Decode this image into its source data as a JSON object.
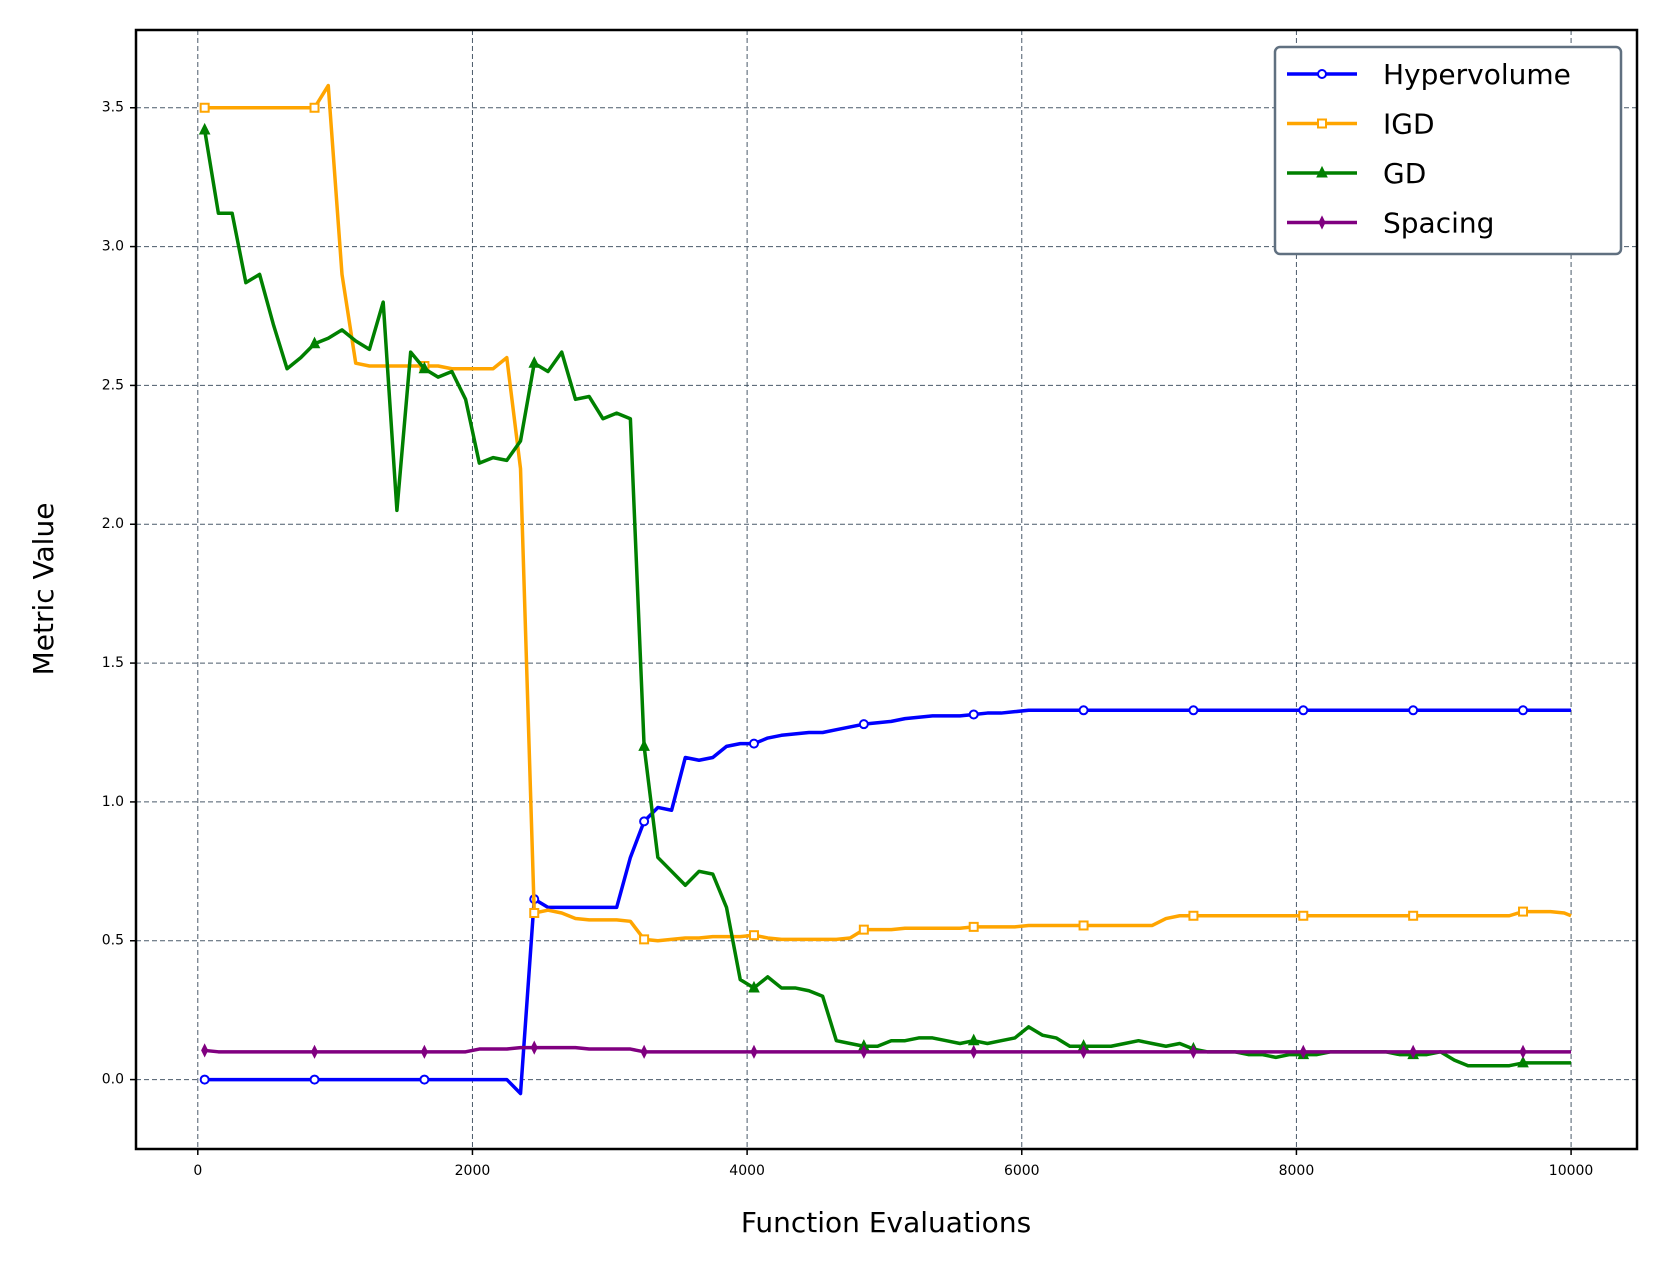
{
  "chart_data": {
    "type": "line",
    "xlabel": "Function Evaluations",
    "ylabel": "Metric Value",
    "xlim": [
      -450,
      10480
    ],
    "ylim": [
      -0.25,
      3.78
    ],
    "xticks": [
      0,
      2000,
      4000,
      6000,
      8000,
      10000
    ],
    "yticks": [
      {
        "value": 0,
        "label": "0.0"
      },
      0.5,
      {
        "value": 1,
        "label": "1.0"
      },
      1.5,
      {
        "value": 2,
        "label": "2.0"
      },
      2.5,
      {
        "value": 3,
        "label": "3.0"
      },
      3.5
    ],
    "grid": true,
    "legend": "upper right",
    "x": [
      50,
      150,
      250,
      350,
      450,
      550,
      650,
      750,
      850,
      950,
      1050,
      1150,
      1250,
      1350,
      1450,
      1550,
      1650,
      1750,
      1850,
      1950,
      2050,
      2150,
      2250,
      2350,
      2450,
      2550,
      2650,
      2750,
      2850,
      2950,
      3050,
      3150,
      3250,
      3350,
      3450,
      3550,
      3650,
      3750,
      3850,
      3950,
      4050,
      4150,
      4250,
      4350,
      4450,
      4550,
      4650,
      4750,
      4850,
      4950,
      5050,
      5150,
      5250,
      5350,
      5450,
      5550,
      5650,
      5750,
      5850,
      5950,
      6050,
      6150,
      6250,
      6350,
      6450,
      6550,
      6650,
      6750,
      6850,
      6950,
      7050,
      7150,
      7250,
      7350,
      7450,
      7550,
      7650,
      7750,
      7850,
      7950,
      8050,
      8150,
      8250,
      8350,
      8450,
      8550,
      8650,
      8750,
      8850,
      8950,
      9050,
      9150,
      9250,
      9350,
      9450,
      9550,
      9650,
      9750,
      9850,
      9950,
      10000
    ],
    "series": [
      {
        "name": "Hypervolume",
        "color": "#0000ff",
        "marker": "o",
        "values": [
          0,
          0,
          0,
          0,
          0,
          0,
          0,
          0,
          0,
          0,
          0,
          0,
          0,
          0,
          0,
          0,
          0,
          0,
          0,
          0,
          0,
          0,
          0,
          -0.05,
          0.65,
          0.62,
          0.62,
          0.62,
          0.62,
          0.62,
          0.62,
          0.8,
          0.93,
          0.98,
          0.97,
          1.16,
          1.15,
          1.16,
          1.2,
          1.21,
          1.21,
          1.23,
          1.24,
          1.245,
          1.25,
          1.25,
          1.26,
          1.27,
          1.28,
          1.285,
          1.29,
          1.3,
          1.305,
          1.31,
          1.31,
          1.31,
          1.315,
          1.32,
          1.32,
          1.325,
          1.33,
          1.33,
          1.33,
          1.33,
          1.33,
          1.33,
          1.33,
          1.33,
          1.33,
          1.33,
          1.33,
          1.33,
          1.33,
          1.33,
          1.33,
          1.33,
          1.33,
          1.33,
          1.33,
          1.33,
          1.33,
          1.33,
          1.33,
          1.33,
          1.33,
          1.33,
          1.33,
          1.33,
          1.33,
          1.33,
          1.33,
          1.33,
          1.33,
          1.33,
          1.33,
          1.33,
          1.33,
          1.33,
          1.33,
          1.33,
          1.33
        ]
      },
      {
        "name": "IGD",
        "color": "#ffa500",
        "marker": "s",
        "values": [
          3.5,
          3.5,
          3.5,
          3.5,
          3.5,
          3.5,
          3.5,
          3.5,
          3.5,
          3.58,
          2.9,
          2.58,
          2.57,
          2.57,
          2.57,
          2.57,
          2.57,
          2.57,
          2.56,
          2.56,
          2.56,
          2.56,
          2.6,
          2.2,
          0.6,
          0.61,
          0.6,
          0.58,
          0.575,
          0.575,
          0.575,
          0.57,
          0.505,
          0.5,
          0.505,
          0.51,
          0.51,
          0.515,
          0.515,
          0.515,
          0.52,
          0.51,
          0.505,
          0.505,
          0.505,
          0.505,
          0.505,
          0.51,
          0.54,
          0.54,
          0.54,
          0.545,
          0.545,
          0.545,
          0.545,
          0.545,
          0.55,
          0.55,
          0.55,
          0.55,
          0.555,
          0.555,
          0.555,
          0.555,
          0.555,
          0.555,
          0.555,
          0.555,
          0.555,
          0.555,
          0.58,
          0.59,
          0.59,
          0.59,
          0.59,
          0.59,
          0.59,
          0.59,
          0.59,
          0.59,
          0.59,
          0.59,
          0.59,
          0.59,
          0.59,
          0.59,
          0.59,
          0.59,
          0.59,
          0.59,
          0.59,
          0.59,
          0.59,
          0.59,
          0.59,
          0.59,
          0.605,
          0.605,
          0.605,
          0.6,
          0.59
        ]
      },
      {
        "name": "GD",
        "color": "#008000",
        "marker": "^",
        "values": [
          3.42,
          3.12,
          3.12,
          2.87,
          2.9,
          2.72,
          2.56,
          2.6,
          2.65,
          2.67,
          2.7,
          2.66,
          2.63,
          2.8,
          2.05,
          2.62,
          2.56,
          2.53,
          2.55,
          2.45,
          2.22,
          2.24,
          2.23,
          2.3,
          2.58,
          2.55,
          2.62,
          2.45,
          2.46,
          2.38,
          2.4,
          2.38,
          1.2,
          0.8,
          0.75,
          0.7,
          0.75,
          0.74,
          0.62,
          0.36,
          0.33,
          0.37,
          0.33,
          0.33,
          0.32,
          0.3,
          0.14,
          0.13,
          0.12,
          0.12,
          0.14,
          0.14,
          0.15,
          0.15,
          0.14,
          0.13,
          0.14,
          0.13,
          0.14,
          0.15,
          0.19,
          0.16,
          0.15,
          0.12,
          0.12,
          0.12,
          0.12,
          0.13,
          0.14,
          0.13,
          0.12,
          0.13,
          0.11,
          0.1,
          0.1,
          0.1,
          0.09,
          0.09,
          0.08,
          0.09,
          0.09,
          0.09,
          0.1,
          0.1,
          0.1,
          0.1,
          0.1,
          0.09,
          0.09,
          0.09,
          0.1,
          0.07,
          0.05,
          0.05,
          0.05,
          0.05,
          0.06,
          0.06,
          0.06,
          0.06,
          0.06
        ]
      },
      {
        "name": "Spacing",
        "color": "#800080",
        "marker": "d",
        "values": [
          0.105,
          0.1,
          0.1,
          0.1,
          0.1,
          0.1,
          0.1,
          0.1,
          0.1,
          0.1,
          0.1,
          0.1,
          0.1,
          0.1,
          0.1,
          0.1,
          0.1,
          0.1,
          0.1,
          0.1,
          0.11,
          0.11,
          0.11,
          0.115,
          0.115,
          0.115,
          0.115,
          0.115,
          0.11,
          0.11,
          0.11,
          0.11,
          0.1,
          0.1,
          0.1,
          0.1,
          0.1,
          0.1,
          0.1,
          0.1,
          0.1,
          0.1,
          0.1,
          0.1,
          0.1,
          0.1,
          0.1,
          0.1,
          0.1,
          0.1,
          0.1,
          0.1,
          0.1,
          0.1,
          0.1,
          0.1,
          0.1,
          0.1,
          0.1,
          0.1,
          0.1,
          0.1,
          0.1,
          0.1,
          0.1,
          0.1,
          0.1,
          0.1,
          0.1,
          0.1,
          0.1,
          0.1,
          0.1,
          0.1,
          0.1,
          0.1,
          0.1,
          0.1,
          0.1,
          0.1,
          0.1,
          0.1,
          0.1,
          0.1,
          0.1,
          0.1,
          0.1,
          0.1,
          0.1,
          0.1,
          0.1,
          0.1,
          0.1,
          0.1,
          0.1,
          0.1,
          0.1,
          0.1,
          0.1,
          0.1,
          0.1
        ]
      }
    ]
  }
}
